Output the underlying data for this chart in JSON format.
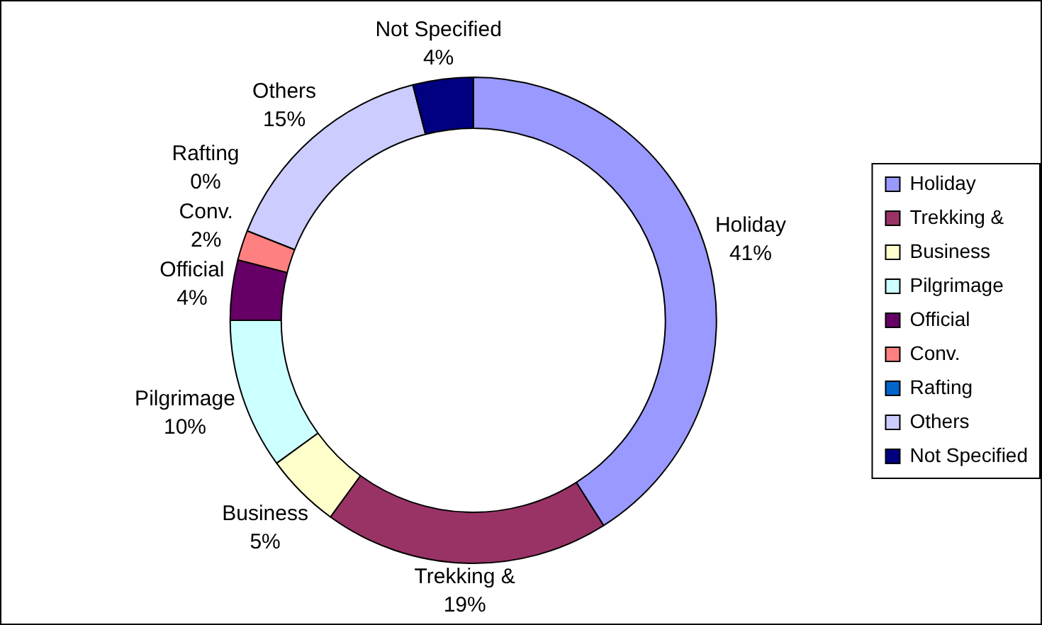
{
  "chart_data": {
    "type": "donut",
    "categories": [
      "Holiday",
      "Trekking &",
      "Business",
      "Pilgrimage",
      "Official",
      "Conv.",
      "Rafting",
      "Others",
      "Not Specified"
    ],
    "values": [
      41,
      19,
      5,
      10,
      4,
      2,
      0,
      15,
      4
    ],
    "value_labels": [
      "41%",
      "19%",
      "5%",
      "10%",
      "4%",
      "2%",
      "0%",
      "15%",
      "4%"
    ],
    "colors": [
      "#9999ff",
      "#993366",
      "#ffffcc",
      "#ccffff",
      "#660066",
      "#ff8080",
      "#0066cc",
      "#ccccff",
      "#000080"
    ],
    "legend": "right"
  }
}
